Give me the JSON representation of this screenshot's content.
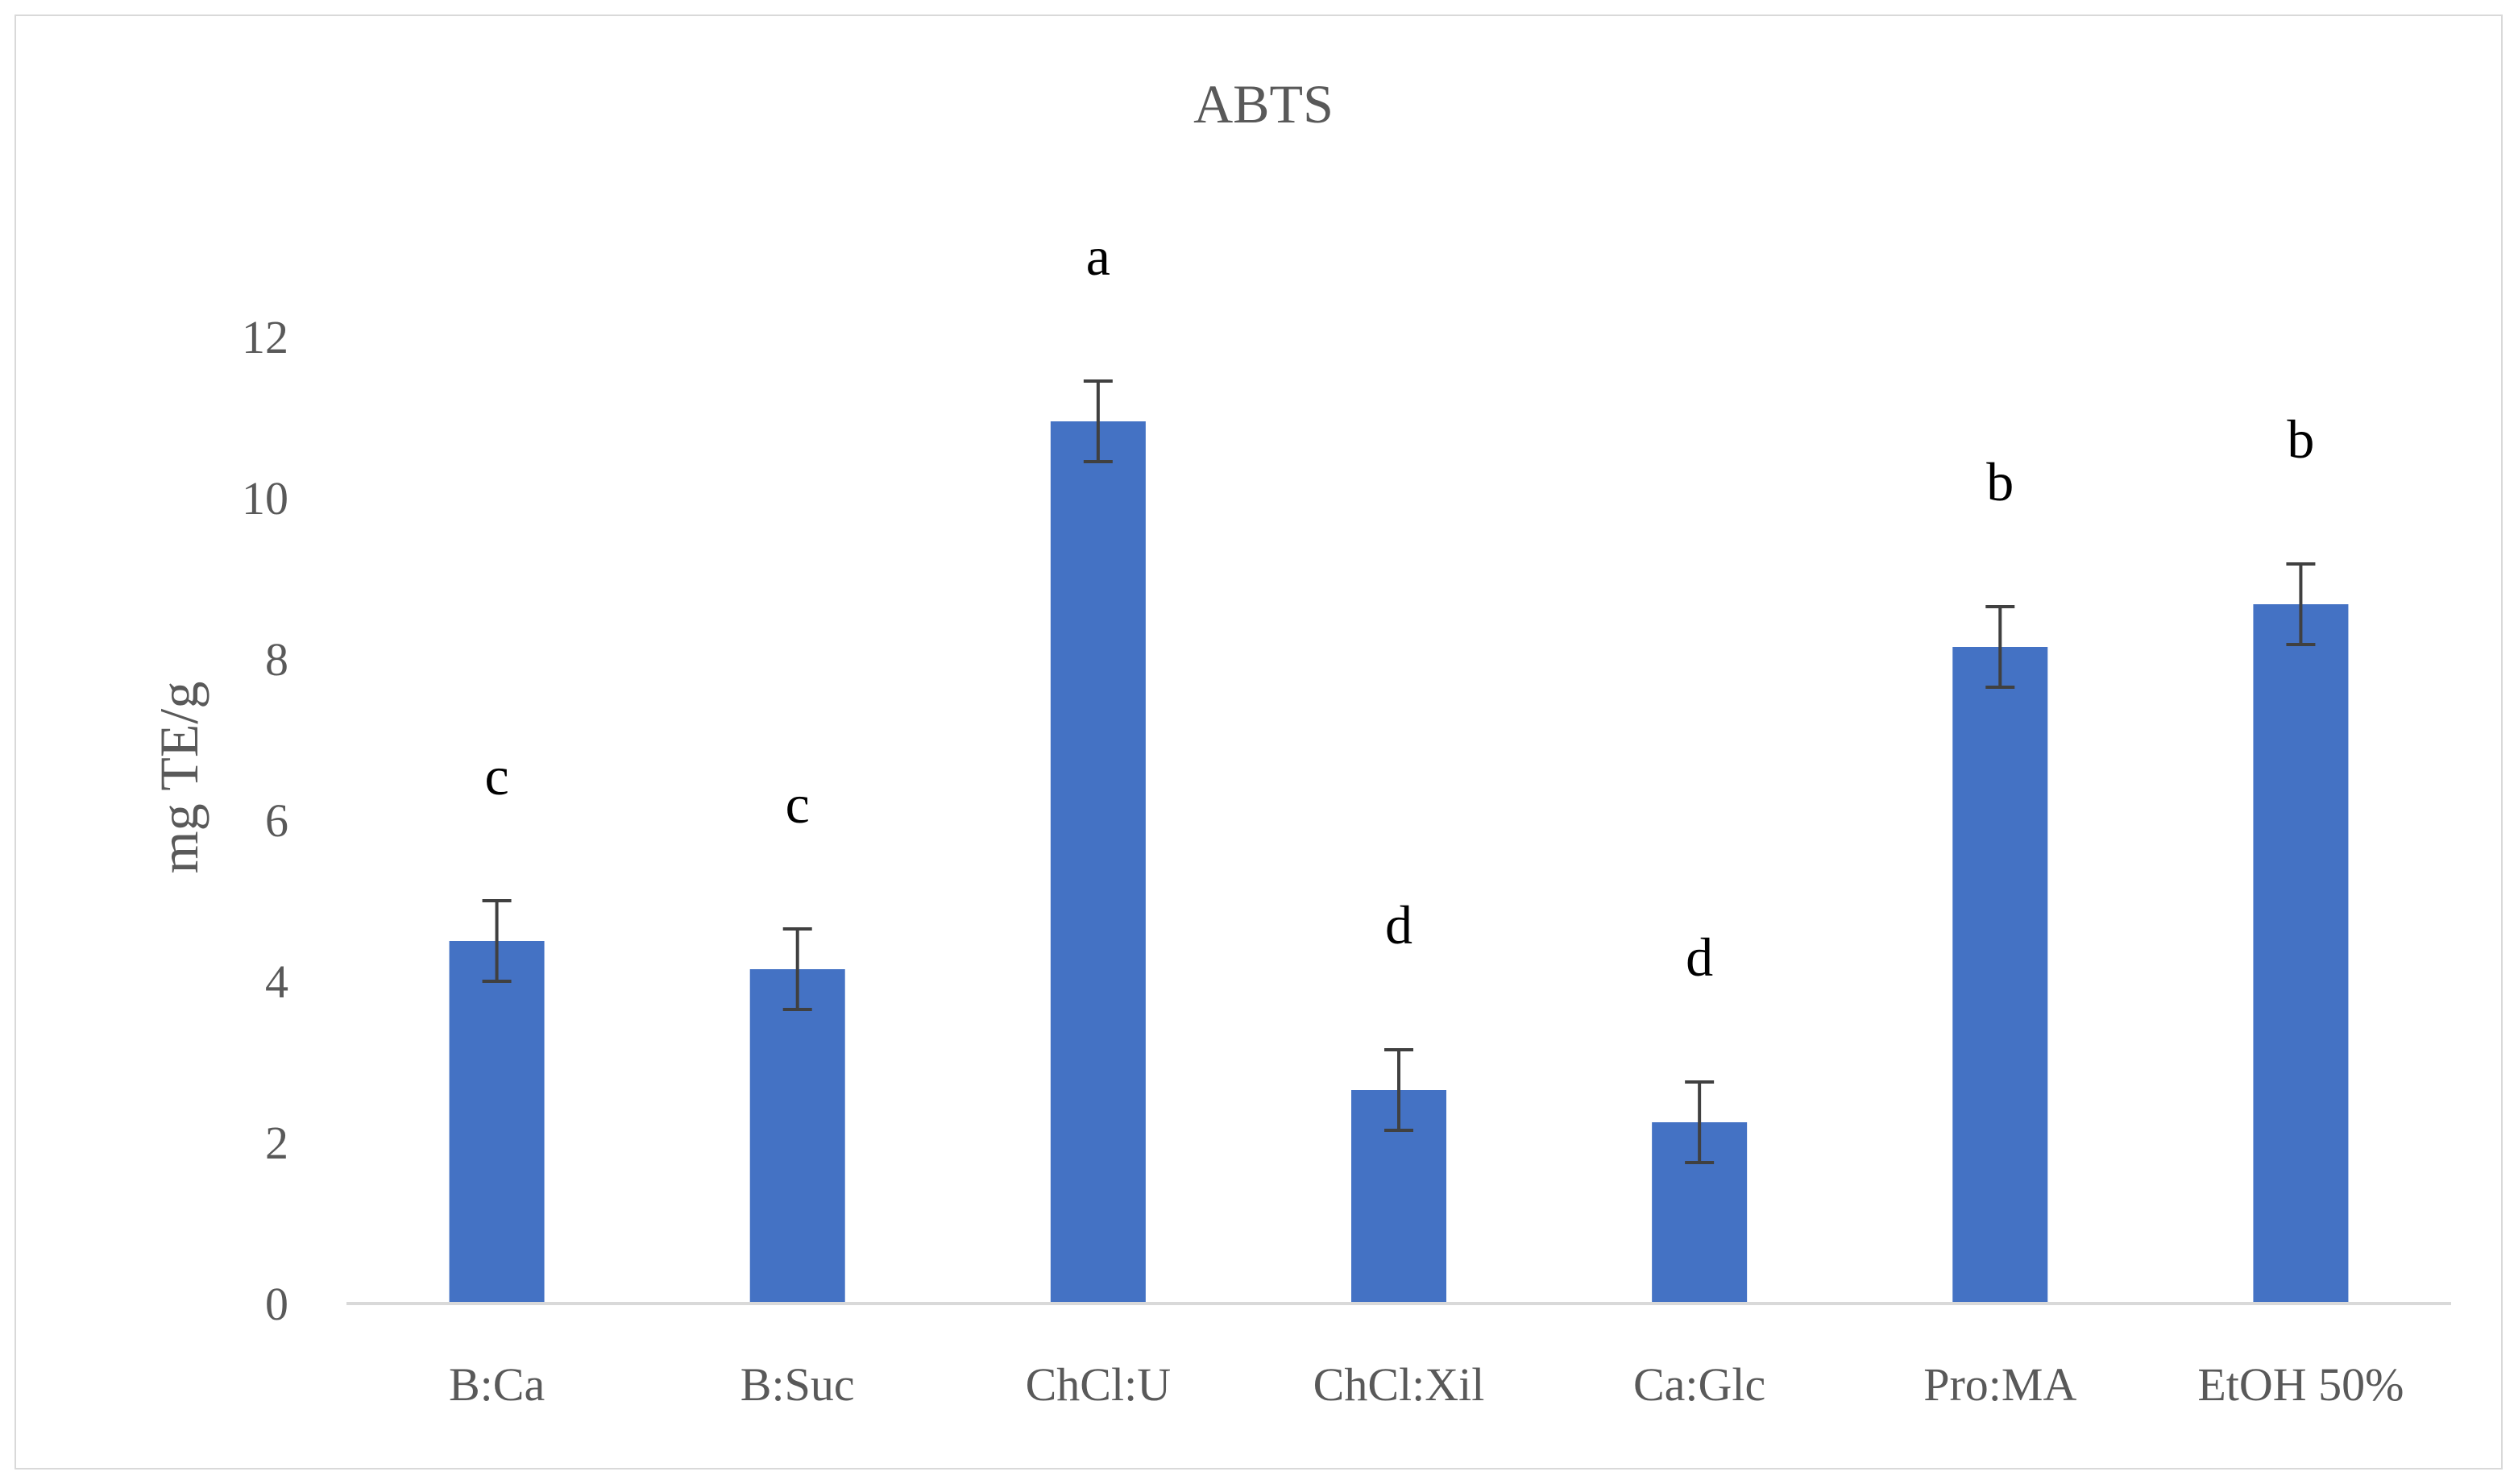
{
  "chart_data": {
    "type": "bar",
    "title": "ABTS",
    "xlabel": "",
    "ylabel": "mg TE/g",
    "ylim": [
      0,
      12
    ],
    "yticks": [
      0,
      2,
      4,
      6,
      8,
      10,
      12
    ],
    "grid": false,
    "legend": "none",
    "categories": [
      "B:Ca",
      "B:Suc",
      "ChCl:U",
      "ChCl:Xil",
      "Ca:Glc",
      "Pro:MA",
      "EtOH 50%"
    ],
    "values": [
      4.5,
      4.15,
      10.95,
      2.65,
      2.25,
      8.15,
      8.68
    ],
    "errors": [
      0.5,
      0.5,
      0.5,
      0.5,
      0.5,
      0.5,
      0.5
    ],
    "significance_letters": [
      "c",
      "c",
      "a",
      "d",
      "d",
      "b",
      "b"
    ],
    "colors": {
      "bar": "#4472C4",
      "axis": "#d9d9d9",
      "error": "#404040"
    }
  }
}
